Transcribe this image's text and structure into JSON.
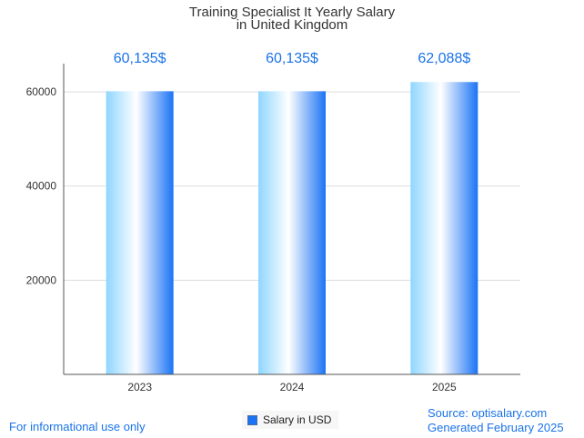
{
  "chart_data": {
    "type": "bar",
    "title_lines": [
      "Training Specialist It Yearly Salary",
      "in United Kingdom"
    ],
    "categories": [
      "2023",
      "2024",
      "2025"
    ],
    "series": [
      {
        "name": "Salary in USD",
        "values": [
          60135,
          60135,
          62088
        ]
      }
    ],
    "data_labels": [
      "60,135$",
      "60,135$",
      "62,088$"
    ],
    "y_ticks": [
      20000,
      40000,
      60000
    ],
    "ylim": [
      0,
      66000
    ],
    "grid": true,
    "legend_position": "bottom-center",
    "colors": {
      "bar_dark": "#1a73f5",
      "bar_light": "#8fd6ff",
      "bar_highlight": "#ffffff",
      "label": "#1a73e8"
    }
  },
  "footer": {
    "disclaimer": "For informational use only",
    "source": "Source: optisalary.com",
    "generated": "Generated February 2025"
  }
}
